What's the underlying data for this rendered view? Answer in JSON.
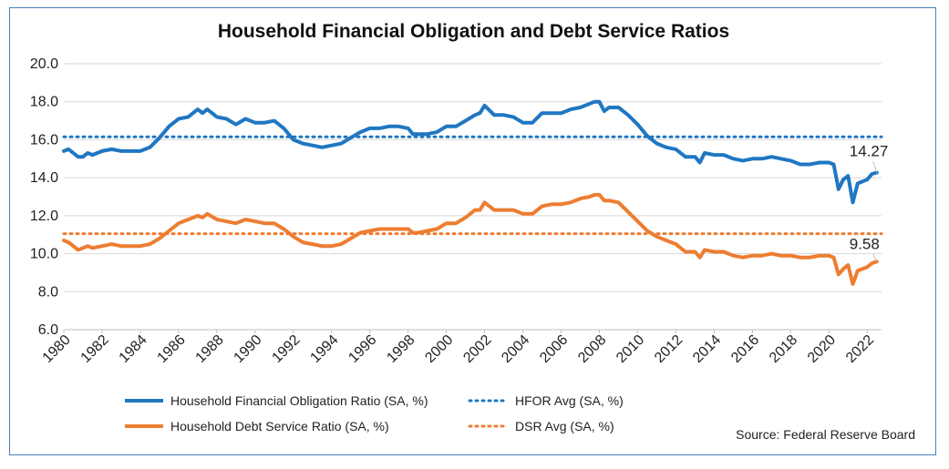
{
  "chart_data": {
    "type": "line",
    "title": "Household Financial Obligation and Debt Service Ratios",
    "source": "Source: Federal Reserve Board",
    "ylim": [
      6.0,
      20.0
    ],
    "y_ticks": [
      "20.0",
      "18.0",
      "16.0",
      "14.0",
      "12.0",
      "10.0",
      "8.0",
      "6.0"
    ],
    "x_ticks": [
      "1980",
      "1982",
      "1984",
      "1986",
      "1988",
      "1990",
      "1992",
      "1994",
      "1996",
      "1998",
      "2000",
      "2002",
      "2004",
      "2006",
      "2008",
      "2010",
      "2012",
      "2014",
      "2016",
      "2018",
      "2020",
      "2022"
    ],
    "xlim": [
      1980.0,
      2022.75
    ],
    "grid": true,
    "legend_placement": "bottom",
    "series": [
      {
        "name": "Household Financial Obligation Ratio (SA, %)",
        "color": "#1f77c2",
        "style": "solid",
        "end_label": "14.27",
        "points": [
          [
            1980.0,
            15.4
          ],
          [
            1980.25,
            15.5
          ],
          [
            1980.75,
            15.1
          ],
          [
            1981.0,
            15.1
          ],
          [
            1981.25,
            15.3
          ],
          [
            1981.5,
            15.2
          ],
          [
            1982.0,
            15.4
          ],
          [
            1982.5,
            15.5
          ],
          [
            1983.0,
            15.4
          ],
          [
            1983.5,
            15.4
          ],
          [
            1984.0,
            15.4
          ],
          [
            1984.5,
            15.6
          ],
          [
            1985.0,
            16.1
          ],
          [
            1985.5,
            16.7
          ],
          [
            1986.0,
            17.1
          ],
          [
            1986.5,
            17.2
          ],
          [
            1987.0,
            17.6
          ],
          [
            1987.25,
            17.4
          ],
          [
            1987.5,
            17.6
          ],
          [
            1988.0,
            17.2
          ],
          [
            1988.5,
            17.1
          ],
          [
            1989.0,
            16.8
          ],
          [
            1989.5,
            17.1
          ],
          [
            1990.0,
            16.9
          ],
          [
            1990.5,
            16.9
          ],
          [
            1991.0,
            17.0
          ],
          [
            1991.5,
            16.6
          ],
          [
            1992.0,
            16.0
          ],
          [
            1992.5,
            15.8
          ],
          [
            1993.0,
            15.7
          ],
          [
            1993.5,
            15.6
          ],
          [
            1994.0,
            15.7
          ],
          [
            1994.5,
            15.8
          ],
          [
            1995.0,
            16.1
          ],
          [
            1995.5,
            16.4
          ],
          [
            1996.0,
            16.6
          ],
          [
            1996.5,
            16.6
          ],
          [
            1997.0,
            16.7
          ],
          [
            1997.5,
            16.7
          ],
          [
            1998.0,
            16.6
          ],
          [
            1998.25,
            16.3
          ],
          [
            1998.5,
            16.3
          ],
          [
            1999.0,
            16.3
          ],
          [
            1999.5,
            16.4
          ],
          [
            2000.0,
            16.7
          ],
          [
            2000.5,
            16.7
          ],
          [
            2001.0,
            17.0
          ],
          [
            2001.5,
            17.3
          ],
          [
            2001.75,
            17.4
          ],
          [
            2002.0,
            17.8
          ],
          [
            2002.5,
            17.3
          ],
          [
            2003.0,
            17.3
          ],
          [
            2003.5,
            17.2
          ],
          [
            2004.0,
            16.9
          ],
          [
            2004.5,
            16.9
          ],
          [
            2005.0,
            17.4
          ],
          [
            2005.5,
            17.4
          ],
          [
            2006.0,
            17.4
          ],
          [
            2006.5,
            17.6
          ],
          [
            2007.0,
            17.7
          ],
          [
            2007.5,
            17.9
          ],
          [
            2007.75,
            18.0
          ],
          [
            2008.0,
            18.0
          ],
          [
            2008.25,
            17.5
          ],
          [
            2008.5,
            17.7
          ],
          [
            2009.0,
            17.7
          ],
          [
            2009.5,
            17.3
          ],
          [
            2010.0,
            16.8
          ],
          [
            2010.5,
            16.2
          ],
          [
            2011.0,
            15.8
          ],
          [
            2011.5,
            15.6
          ],
          [
            2012.0,
            15.5
          ],
          [
            2012.5,
            15.1
          ],
          [
            2013.0,
            15.1
          ],
          [
            2013.25,
            14.8
          ],
          [
            2013.5,
            15.3
          ],
          [
            2014.0,
            15.2
          ],
          [
            2014.5,
            15.2
          ],
          [
            2015.0,
            15.0
          ],
          [
            2015.5,
            14.9
          ],
          [
            2016.0,
            15.0
          ],
          [
            2016.5,
            15.0
          ],
          [
            2017.0,
            15.1
          ],
          [
            2017.5,
            15.0
          ],
          [
            2018.0,
            14.9
          ],
          [
            2018.5,
            14.7
          ],
          [
            2019.0,
            14.7
          ],
          [
            2019.5,
            14.8
          ],
          [
            2020.0,
            14.8
          ],
          [
            2020.25,
            14.7
          ],
          [
            2020.5,
            13.4
          ],
          [
            2020.75,
            13.9
          ],
          [
            2021.0,
            14.1
          ],
          [
            2021.25,
            12.7
          ],
          [
            2021.5,
            13.7
          ],
          [
            2022.0,
            13.9
          ],
          [
            2022.25,
            14.2
          ],
          [
            2022.5,
            14.27
          ]
        ]
      },
      {
        "name": "HFOR Avg (SA, %)",
        "color": "#1f77c2",
        "style": "dotted",
        "constant": 16.15
      },
      {
        "name": "Household Debt Service Ratio (SA, %)",
        "color": "#ed7d31",
        "style": "solid",
        "end_label": "9.58",
        "points": [
          [
            1980.0,
            10.7
          ],
          [
            1980.25,
            10.6
          ],
          [
            1980.75,
            10.2
          ],
          [
            1981.0,
            10.3
          ],
          [
            1981.25,
            10.4
          ],
          [
            1981.5,
            10.3
          ],
          [
            1982.0,
            10.4
          ],
          [
            1982.5,
            10.5
          ],
          [
            1983.0,
            10.4
          ],
          [
            1983.5,
            10.4
          ],
          [
            1984.0,
            10.4
          ],
          [
            1984.5,
            10.5
          ],
          [
            1985.0,
            10.8
          ],
          [
            1985.5,
            11.2
          ],
          [
            1986.0,
            11.6
          ],
          [
            1986.5,
            11.8
          ],
          [
            1987.0,
            12.0
          ],
          [
            1987.25,
            11.9
          ],
          [
            1987.5,
            12.1
          ],
          [
            1988.0,
            11.8
          ],
          [
            1988.5,
            11.7
          ],
          [
            1989.0,
            11.6
          ],
          [
            1989.5,
            11.8
          ],
          [
            1990.0,
            11.7
          ],
          [
            1990.5,
            11.6
          ],
          [
            1991.0,
            11.6
          ],
          [
            1991.5,
            11.3
          ],
          [
            1992.0,
            10.9
          ],
          [
            1992.5,
            10.6
          ],
          [
            1993.0,
            10.5
          ],
          [
            1993.5,
            10.4
          ],
          [
            1994.0,
            10.4
          ],
          [
            1994.5,
            10.5
          ],
          [
            1995.0,
            10.8
          ],
          [
            1995.5,
            11.1
          ],
          [
            1996.0,
            11.2
          ],
          [
            1996.5,
            11.3
          ],
          [
            1997.0,
            11.3
          ],
          [
            1997.5,
            11.3
          ],
          [
            1998.0,
            11.3
          ],
          [
            1998.25,
            11.1
          ],
          [
            1998.5,
            11.1
          ],
          [
            1999.0,
            11.2
          ],
          [
            1999.5,
            11.3
          ],
          [
            2000.0,
            11.6
          ],
          [
            2000.5,
            11.6
          ],
          [
            2001.0,
            11.9
          ],
          [
            2001.5,
            12.3
          ],
          [
            2001.75,
            12.3
          ],
          [
            2002.0,
            12.7
          ],
          [
            2002.5,
            12.3
          ],
          [
            2003.0,
            12.3
          ],
          [
            2003.5,
            12.3
          ],
          [
            2004.0,
            12.1
          ],
          [
            2004.5,
            12.1
          ],
          [
            2005.0,
            12.5
          ],
          [
            2005.5,
            12.6
          ],
          [
            2006.0,
            12.6
          ],
          [
            2006.5,
            12.7
          ],
          [
            2007.0,
            12.9
          ],
          [
            2007.5,
            13.0
          ],
          [
            2007.75,
            13.1
          ],
          [
            2008.0,
            13.1
          ],
          [
            2008.25,
            12.8
          ],
          [
            2008.5,
            12.8
          ],
          [
            2009.0,
            12.7
          ],
          [
            2009.5,
            12.2
          ],
          [
            2010.0,
            11.7
          ],
          [
            2010.5,
            11.2
          ],
          [
            2011.0,
            10.9
          ],
          [
            2011.5,
            10.7
          ],
          [
            2012.0,
            10.5
          ],
          [
            2012.5,
            10.1
          ],
          [
            2013.0,
            10.1
          ],
          [
            2013.25,
            9.8
          ],
          [
            2013.5,
            10.2
          ],
          [
            2014.0,
            10.1
          ],
          [
            2014.5,
            10.1
          ],
          [
            2015.0,
            9.9
          ],
          [
            2015.5,
            9.8
          ],
          [
            2016.0,
            9.9
          ],
          [
            2016.5,
            9.9
          ],
          [
            2017.0,
            10.0
          ],
          [
            2017.5,
            9.9
          ],
          [
            2018.0,
            9.9
          ],
          [
            2018.5,
            9.8
          ],
          [
            2019.0,
            9.8
          ],
          [
            2019.5,
            9.9
          ],
          [
            2020.0,
            9.9
          ],
          [
            2020.25,
            9.8
          ],
          [
            2020.5,
            8.9
          ],
          [
            2020.75,
            9.2
          ],
          [
            2021.0,
            9.4
          ],
          [
            2021.25,
            8.4
          ],
          [
            2021.5,
            9.1
          ],
          [
            2022.0,
            9.3
          ],
          [
            2022.25,
            9.5
          ],
          [
            2022.5,
            9.58
          ]
        ]
      },
      {
        "name": "DSR Avg (SA, %)",
        "color": "#ed7d31",
        "style": "dotted",
        "constant": 11.05
      }
    ]
  }
}
